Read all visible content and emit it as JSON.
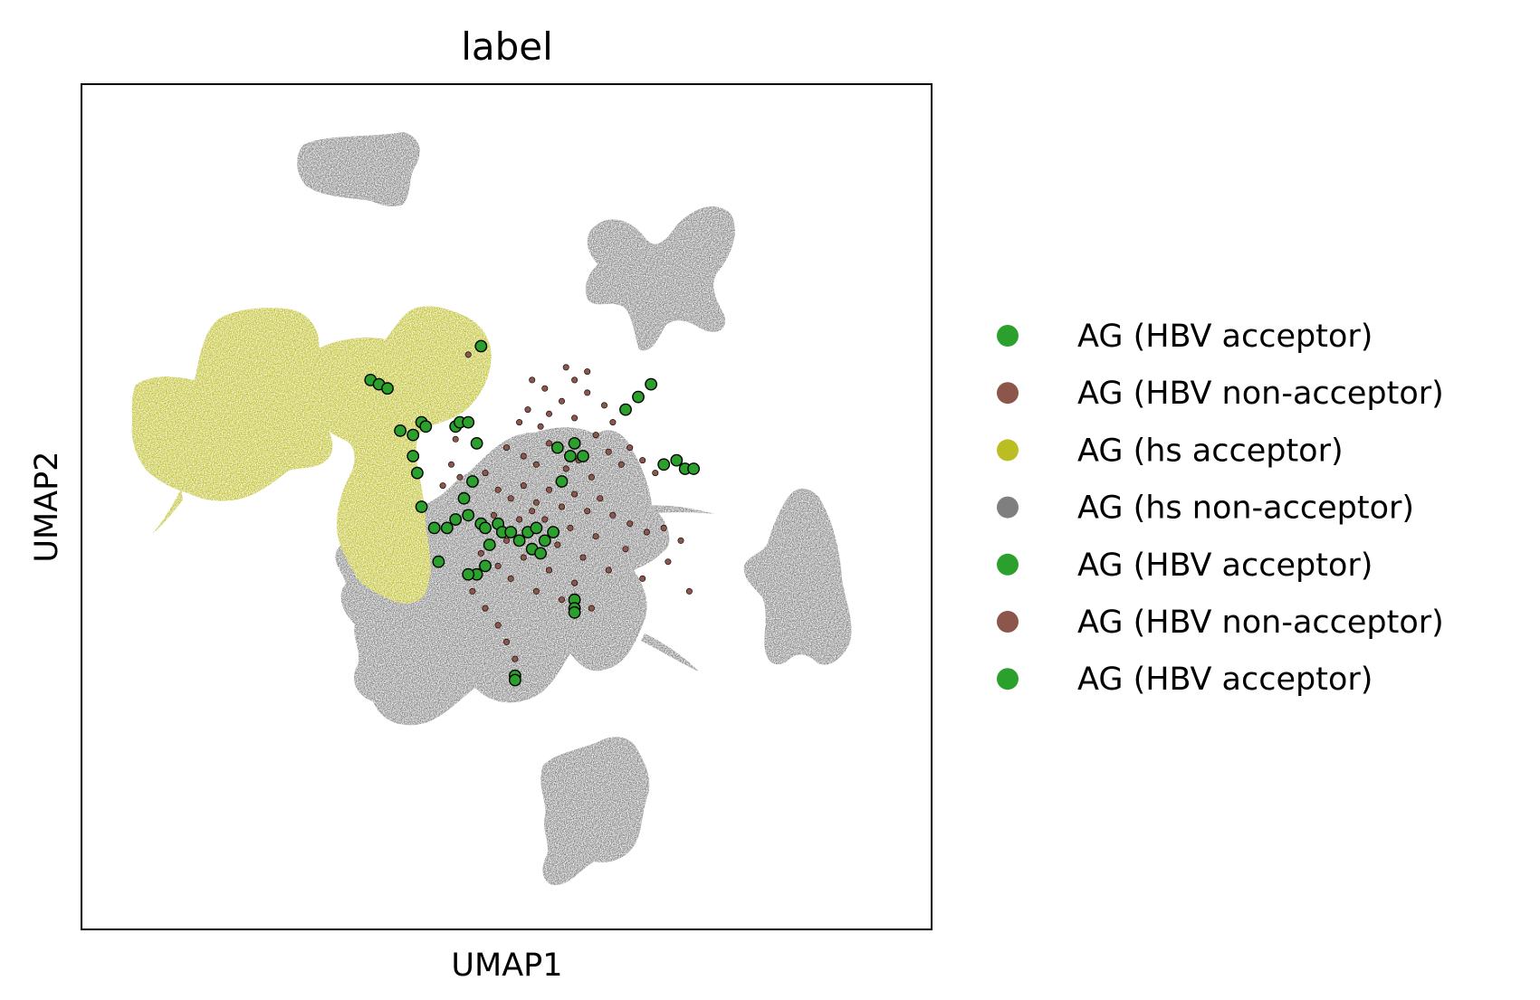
{
  "chart_data": {
    "type": "scatter",
    "title": "label",
    "xlabel": "UMAP1",
    "ylabel": "UMAP2",
    "xticks": [],
    "yticks": [],
    "grid": false,
    "legend_position": "right",
    "legend": [
      {
        "label": "AG (HBV acceptor)",
        "color": "#2ca02c"
      },
      {
        "label": "AG (HBV non-acceptor)",
        "color": "#8c564b"
      },
      {
        "label": "AG (hs acceptor)",
        "color": "#bcbd22"
      },
      {
        "label": "AG (hs non-acceptor)",
        "color": "#7f7f7f"
      },
      {
        "label": "AG (HBV acceptor)",
        "color": "#2ca02c"
      },
      {
        "label": "AG (HBV non-acceptor)",
        "color": "#8c564b"
      },
      {
        "label": "AG (HBV acceptor)",
        "color": "#2ca02c"
      }
    ],
    "highlight_series": [
      {
        "name": "AG (HBV acceptor)",
        "color": "#2ca02c",
        "points": [
          [
            -0.32,
            0.3
          ],
          [
            -0.3,
            0.29
          ],
          [
            -0.28,
            0.28
          ],
          [
            -0.25,
            0.18
          ],
          [
            -0.22,
            0.17
          ],
          [
            -0.2,
            0.2
          ],
          [
            -0.19,
            0.19
          ],
          [
            -0.12,
            0.19
          ],
          [
            -0.11,
            0.2
          ],
          [
            -0.09,
            0.2
          ],
          [
            -0.07,
            0.15
          ],
          [
            -0.06,
            0.38
          ],
          [
            -0.22,
            0.12
          ],
          [
            -0.21,
            0.08
          ],
          [
            -0.2,
            0.0
          ],
          [
            -0.17,
            -0.05
          ],
          [
            -0.14,
            -0.05
          ],
          [
            -0.12,
            -0.03
          ],
          [
            -0.1,
            0.02
          ],
          [
            -0.08,
            0.06
          ],
          [
            -0.09,
            -0.02
          ],
          [
            -0.06,
            -0.04
          ],
          [
            -0.05,
            -0.05
          ],
          [
            -0.04,
            -0.09
          ],
          [
            -0.02,
            -0.04
          ],
          [
            -0.01,
            -0.06
          ],
          [
            0.01,
            -0.06
          ],
          [
            0.03,
            -0.08
          ],
          [
            0.05,
            -0.06
          ],
          [
            0.07,
            -0.05
          ],
          [
            0.09,
            -0.08
          ],
          [
            0.11,
            -0.06
          ],
          [
            0.06,
            -0.1
          ],
          [
            0.08,
            -0.11
          ],
          [
            0.12,
            0.14
          ],
          [
            0.15,
            0.12
          ],
          [
            0.13,
            0.06
          ],
          [
            0.16,
            0.15
          ],
          [
            0.18,
            0.12
          ],
          [
            -0.05,
            -0.14
          ],
          [
            -0.07,
            -0.16
          ],
          [
            -0.09,
            -0.16
          ],
          [
            -0.16,
            -0.13
          ],
          [
            0.16,
            -0.22
          ],
          [
            0.16,
            -0.24
          ],
          [
            0.16,
            -0.25
          ],
          [
            0.02,
            -0.4
          ],
          [
            0.02,
            -0.41
          ],
          [
            0.28,
            0.23
          ],
          [
            0.31,
            0.26
          ],
          [
            0.34,
            0.29
          ],
          [
            0.37,
            0.1
          ],
          [
            0.4,
            0.11
          ],
          [
            0.42,
            0.09
          ],
          [
            0.44,
            0.09
          ]
        ]
      },
      {
        "name": "AG (HBV non-acceptor)",
        "color": "#8c564b",
        "points": [
          [
            -0.09,
            0.36
          ],
          [
            0.03,
            0.2
          ],
          [
            0.05,
            0.23
          ],
          [
            0.08,
            0.19
          ],
          [
            0.1,
            0.22
          ],
          [
            0.13,
            0.25
          ],
          [
            0.16,
            0.21
          ],
          [
            0.19,
            0.27
          ],
          [
            0.21,
            0.17
          ],
          [
            0.23,
            0.24
          ],
          [
            0.25,
            0.2
          ],
          [
            0.0,
            0.14
          ],
          [
            0.04,
            0.12
          ],
          [
            0.07,
            0.1
          ],
          [
            0.1,
            0.15
          ],
          [
            0.14,
            0.09
          ],
          [
            0.17,
            0.11
          ],
          [
            0.2,
            0.07
          ],
          [
            0.24,
            0.13
          ],
          [
            0.27,
            0.1
          ],
          [
            0.29,
            0.14
          ],
          [
            0.32,
            0.11
          ],
          [
            0.35,
            0.08
          ],
          [
            -0.05,
            0.08
          ],
          [
            -0.02,
            0.04
          ],
          [
            0.01,
            0.02
          ],
          [
            0.04,
            0.05
          ],
          [
            0.07,
            0.01
          ],
          [
            0.1,
            0.04
          ],
          [
            0.13,
            0.0
          ],
          [
            0.16,
            0.03
          ],
          [
            0.19,
            -0.01
          ],
          [
            0.22,
            0.02
          ],
          [
            0.25,
            -0.02
          ],
          [
            0.29,
            -0.04
          ],
          [
            0.33,
            -0.06
          ],
          [
            0.37,
            -0.05
          ],
          [
            0.41,
            -0.08
          ],
          [
            -0.03,
            -0.02
          ],
          [
            0.0,
            -0.08
          ],
          [
            0.03,
            -0.03
          ],
          [
            0.06,
            -0.01
          ],
          [
            0.09,
            -0.03
          ],
          [
            0.12,
            -0.09
          ],
          [
            0.15,
            -0.05
          ],
          [
            0.18,
            -0.12
          ],
          [
            0.21,
            -0.07
          ],
          [
            0.24,
            -0.15
          ],
          [
            0.28,
            -0.1
          ],
          [
            0.32,
            -0.17
          ],
          [
            0.38,
            -0.13
          ],
          [
            0.43,
            -0.2
          ],
          [
            -0.06,
            -0.11
          ],
          [
            -0.02,
            -0.14
          ],
          [
            0.01,
            -0.17
          ],
          [
            0.04,
            -0.12
          ],
          [
            0.07,
            -0.2
          ],
          [
            0.1,
            -0.15
          ],
          [
            0.13,
            -0.22
          ],
          [
            0.16,
            -0.18
          ],
          [
            0.2,
            -0.24
          ],
          [
            -0.08,
            -0.2
          ],
          [
            -0.05,
            -0.24
          ],
          [
            -0.02,
            -0.28
          ],
          [
            0.0,
            -0.32
          ],
          [
            0.02,
            -0.36
          ],
          [
            -0.12,
            0.16
          ],
          [
            -0.13,
            0.1
          ],
          [
            -0.15,
            0.05
          ],
          [
            -0.11,
            0.07
          ],
          [
            0.14,
            0.33
          ],
          [
            0.16,
            0.3
          ],
          [
            0.19,
            0.32
          ],
          [
            0.09,
            0.28
          ],
          [
            0.06,
            0.3
          ]
        ]
      }
    ],
    "background_clusters": [
      {
        "name": "AG (hs acceptor)",
        "color": "#bcbd22",
        "shape": "two-lobed leaf cluster",
        "center": [
          -0.28,
          0.44
        ]
      },
      {
        "name": "AG (hs non-acceptor)",
        "color": "#7f7f7f",
        "shape": "central radial cluster",
        "center": [
          0.12,
          0.02
        ]
      },
      {
        "name": "AG (hs non-acceptor)",
        "color": "#7f7f7f",
        "shape": "top-left blob",
        "center": [
          -0.25,
          0.93
        ]
      },
      {
        "name": "AG (hs non-acceptor)",
        "color": "#7f7f7f",
        "shape": "top-right butterfly",
        "center": [
          0.5,
          0.6
        ]
      },
      {
        "name": "AG (hs non-acceptor)",
        "color": "#7f7f7f",
        "shape": "right cluster",
        "center": [
          0.86,
          -0.02
        ]
      },
      {
        "name": "AG (hs non-acceptor)",
        "color": "#7f7f7f",
        "shape": "bottom cluster",
        "center": [
          0.22,
          -0.7
        ]
      }
    ]
  }
}
